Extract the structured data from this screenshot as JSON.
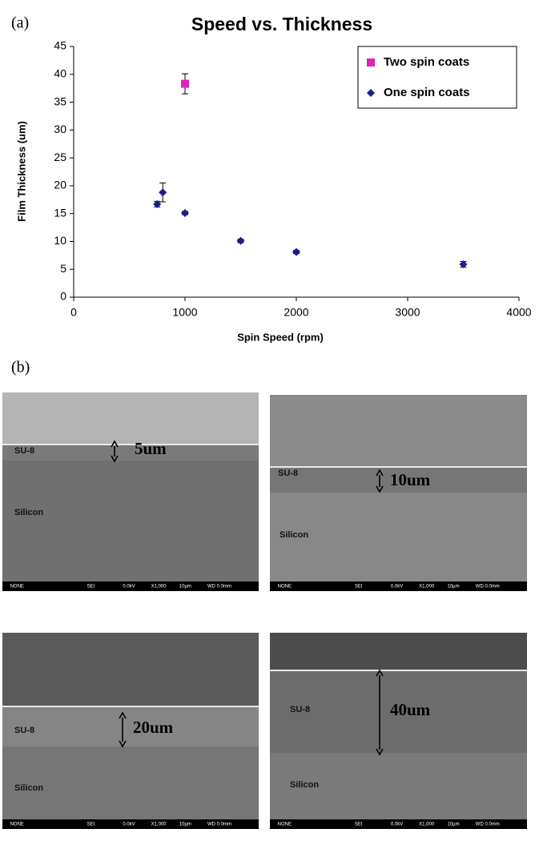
{
  "chart_data": {
    "type": "scatter",
    "title": "Speed vs. Thickness",
    "x_label": "Spin Speed (rpm)",
    "y_label": "Film Thickness (um)",
    "xlim": [
      0,
      4000
    ],
    "xticks": [
      0,
      1000,
      2000,
      3000,
      4000
    ],
    "ylim": [
      0,
      45
    ],
    "yticks": [
      0,
      5,
      10,
      15,
      20,
      25,
      30,
      35,
      40,
      45
    ],
    "legend": "top-right",
    "series": [
      {
        "name": "Two spin coats",
        "color": "#e020c0",
        "marker": "square",
        "x": [
          1000
        ],
        "values": [
          38.3
        ],
        "errors": [
          1.8
        ]
      },
      {
        "name": "One spin coats",
        "color": "#1c1c8c",
        "marker": "diamond",
        "x": [
          750,
          800,
          1000,
          1500,
          2000,
          3500
        ],
        "values": [
          16.7,
          18.8,
          15.1,
          10.1,
          8.1,
          5.9
        ],
        "errors": [
          0.5,
          1.7,
          0.3,
          0.3,
          0.3,
          0.5
        ]
      }
    ]
  },
  "panel_labels": [
    "(a)",
    "(b)"
  ],
  "info_bar": [
    "NONE",
    "SEI",
    "0.0kV",
    "X1,000",
    "10µm",
    "WD 0.0mm"
  ],
  "images": [
    {
      "su8": "SU-8",
      "silicon": "Silicon",
      "thickness": "5um"
    },
    {
      "su8": "SU-8",
      "silicon": "Silicon",
      "thickness": "10um"
    },
    {
      "su8": "SU-8",
      "silicon": "Silicon",
      "thickness": "20um"
    },
    {
      "su8": "SU-8",
      "silicon": "Silicon",
      "thickness": "40um"
    }
  ]
}
